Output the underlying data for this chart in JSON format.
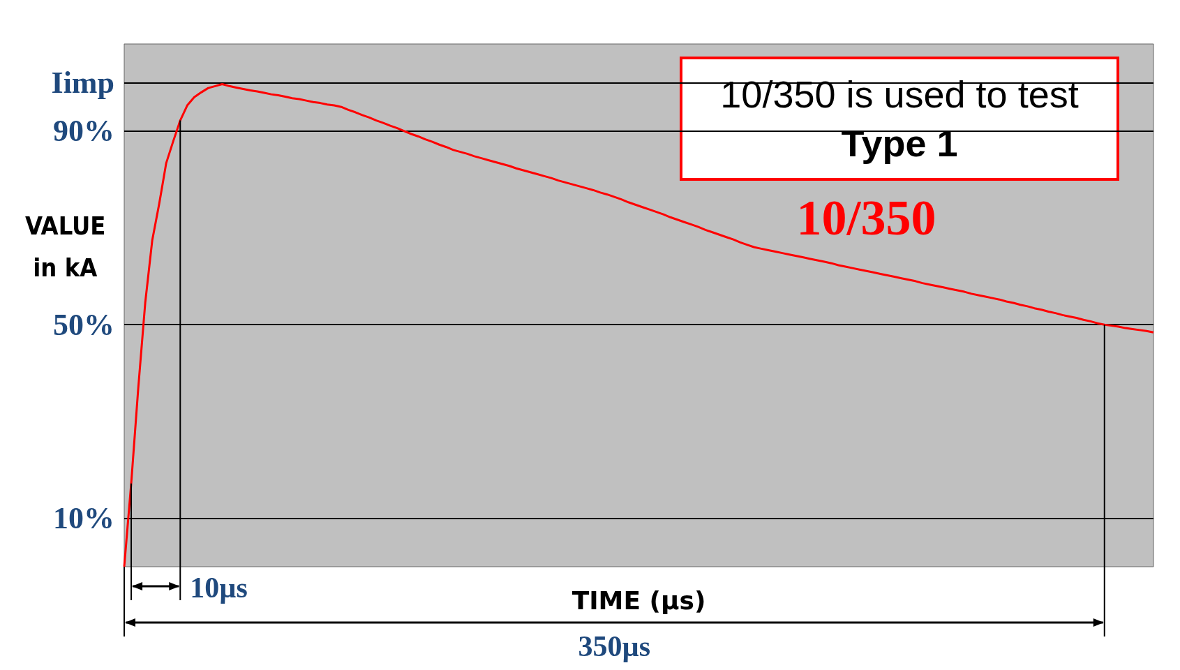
{
  "chart_data": {
    "type": "line",
    "xlabel": "TIME (µs)",
    "ylabel": "VALUE in kA",
    "categories": [
      null,
      null,
      null,
      null,
      null,
      null,
      null,
      null,
      null,
      null,
      null,
      null,
      null,
      null,
      null,
      null,
      null,
      null,
      null,
      null,
      null,
      null,
      null,
      null,
      null,
      null,
      null,
      null,
      null,
      null,
      null,
      null,
      null,
      null,
      null,
      null,
      null,
      null,
      null,
      null,
      null,
      null,
      null,
      null,
      null,
      null,
      null,
      null,
      null,
      null,
      null,
      null,
      null,
      null,
      null,
      null,
      null,
      null,
      null,
      null,
      null,
      null,
      null,
      null,
      null,
      null,
      null,
      null,
      null,
      null,
      null,
      null,
      null,
      null,
      null,
      null,
      null,
      null,
      null,
      null,
      null,
      null,
      null,
      null,
      null,
      null,
      null,
      null,
      null,
      null,
      null,
      null,
      null,
      null,
      null,
      null,
      null,
      null,
      null,
      null,
      null,
      null,
      null,
      null,
      null,
      null,
      null,
      null,
      null,
      null,
      null,
      null,
      null,
      null,
      null,
      null,
      null,
      null,
      null,
      null,
      null,
      null,
      null,
      null,
      null,
      null,
      null,
      null,
      null,
      null,
      null,
      null,
      null,
      null,
      null,
      null,
      null,
      null,
      null,
      null,
      null,
      null,
      null,
      null,
      null,
      null,
      null,
      null
    ],
    "series": [
      {
        "name": "10/350",
        "color": "#ff0000",
        "values": [
          0,
          17.2,
          36.8,
          54.5,
          67.4,
          75,
          83.4,
          87.9,
          92.2,
          95.3,
          97,
          98,
          98.9,
          99.3,
          99.7,
          99.3,
          99,
          98.7,
          98.4,
          98.2,
          97.9,
          97.6,
          97.4,
          97.1,
          96.8,
          96.6,
          96.3,
          96,
          95.8,
          95.5,
          95.3,
          95,
          94.4,
          93.9,
          93.3,
          92.8,
          92.2,
          91.7,
          91.1,
          90.6,
          90,
          89.4,
          88.9,
          88.3,
          87.8,
          87.2,
          86.7,
          86.1,
          85.7,
          85.3,
          84.8,
          84.4,
          84,
          83.6,
          83.2,
          82.8,
          82.3,
          81.9,
          81.5,
          81.1,
          80.7,
          80.3,
          79.8,
          79.4,
          79,
          78.6,
          78.2,
          77.8,
          77.3,
          76.9,
          76.4,
          75.9,
          75.3,
          74.8,
          74.3,
          73.8,
          73.3,
          72.8,
          72.2,
          71.7,
          71.2,
          70.7,
          70.2,
          69.6,
          69.1,
          68.6,
          68.1,
          67.6,
          67,
          66.5,
          66,
          65.7,
          65.4,
          65.1,
          64.8,
          64.5,
          64.2,
          63.9,
          63.6,
          63.3,
          63,
          62.7,
          62.3,
          62,
          61.7,
          61.4,
          61.1,
          60.8,
          60.5,
          60.2,
          59.9,
          59.6,
          59.3,
          59,
          58.6,
          58.3,
          58,
          57.7,
          57.4,
          57.1,
          56.8,
          56.4,
          56.1,
          55.8,
          55.5,
          55.2,
          54.8,
          54.5,
          54.1,
          53.8,
          53.4,
          53.1,
          52.7,
          52.4,
          52,
          51.7,
          51.4,
          51,
          50.7,
          50.3,
          50,
          49.8,
          49.6,
          49.3,
          49.1,
          48.9,
          48.7,
          48.4
        ]
      }
    ],
    "ylim": [
      0,
      108
    ],
    "yticks": [
      {
        "value": 10,
        "label": "10%"
      },
      {
        "value": 50,
        "label": "50%"
      },
      {
        "value": 90,
        "label": "90%"
      },
      {
        "value": 100,
        "label": "Iimp"
      }
    ],
    "tick_labels": "y",
    "grid": false,
    "legend": false,
    "marker": "none",
    "line_style": "solid",
    "ref_lines": [
      {
        "axis": "y",
        "value": 100,
        "color": "#000000"
      },
      {
        "axis": "y",
        "value": 90,
        "color": "#000000"
      },
      {
        "axis": "y",
        "value": 50,
        "color": "#000000"
      },
      {
        "axis": "y",
        "value": 10,
        "color": "#000000"
      }
    ],
    "annotations": [
      "10/350 is used to test\nType 1",
      "10µs",
      "350µs"
    ]
  }
}
